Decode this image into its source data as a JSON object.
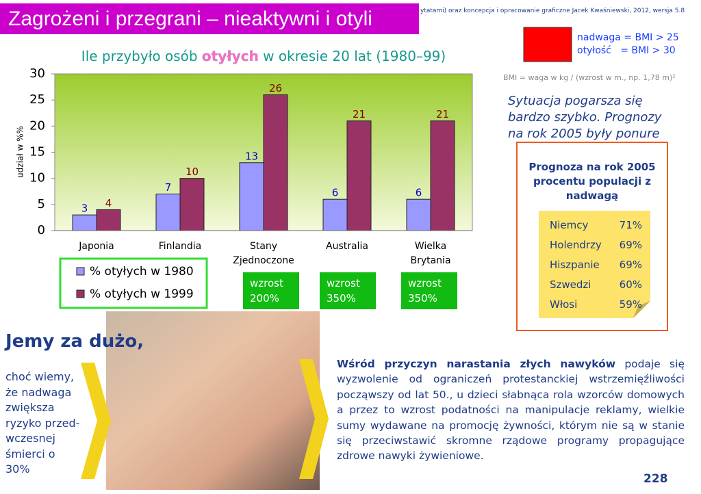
{
  "slide_title": "Zagrożeni i przegrani – nieaktywni i otyli",
  "header_note": "ytatami) oraz koncepcja i opracowanie graficzne Jacek Kwaśniewski, 2012,  wersja 5.8",
  "bmi_legend": [
    "nadwaga = BMI > 25",
    "otyłość   = BMI > 30"
  ],
  "bmi_formula": "BMI = waga w kg / (wzrost w m., np. 1,78 m)²",
  "situation_note": "Sytuacja pogarsza się bardzo szybko. Prognozy na rok 2005 były ponure",
  "forecast": {
    "title": "Prognoza na rok 2005 procentu populacji z nadwagą",
    "rows": [
      [
        "Niemcy",
        "71%"
      ],
      [
        "Holendrzy",
        "69%"
      ],
      [
        "Hiszpanie",
        "69%"
      ],
      [
        "Szwedzi",
        "60%"
      ],
      [
        "Włosi",
        "59%"
      ]
    ]
  },
  "headline": "Jemy za dużo,",
  "side_note": "choć wiemy, że nadwaga zwiększa ryzyko przed-wczesnej śmierci o 30%",
  "paragraph": {
    "lead": "Wśród przyczyn narastania złych nawyków",
    "text": "podaje się wyzwolenie od ograniczeń protestanckiej wstrzemięźliwości począwszy od lat 50., u dzieci słabnąca rola wzorców domowych a przez to wzrost podatności na manipulacje reklamy, wielkie sumy wydawane na promocję żywności, którym nie są w stanie się przeciwstawić skromne rządowe programy propagujące zdrowe nawyki żywieniowe."
  },
  "page_number": "228",
  "chart_data": {
    "type": "bar",
    "title": [
      "Ile przybyło osób",
      "otyłych",
      "w okresie 20 lat (1980–99)"
    ],
    "y_label": "udział w %%",
    "categories": [
      "Japonia",
      "Finlandia",
      "Stany Zjednoczone",
      "Australia",
      "Wielka Brytania"
    ],
    "series": [
      {
        "name": "% otyłych w 1980",
        "color": "#9999ff",
        "label_color": "#0000cc",
        "values": [
          3,
          7,
          13,
          6,
          6
        ]
      },
      {
        "name": "% otyłych w 1999",
        "color": "#993366",
        "label_color": "#800000",
        "values": [
          4,
          10,
          26,
          21,
          21
        ]
      }
    ],
    "ylim": [
      0,
      30
    ],
    "yticks": [
      0,
      5,
      10,
      15,
      20,
      25,
      30
    ],
    "grid": false,
    "annotations": [
      "wzrost 200%",
      "wzrost 350%",
      "wzrost 350%"
    ]
  }
}
